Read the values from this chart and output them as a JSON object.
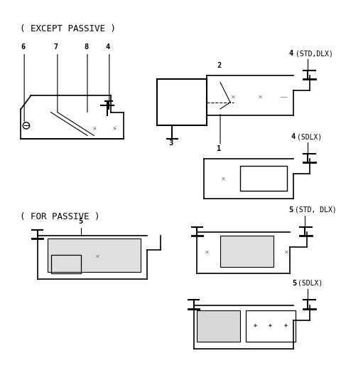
{
  "title": "( EXCEPT PASSIVE )",
  "title2": "( FOR PASSIVE )",
  "bg_color": "#ffffff",
  "line_color": "#000000",
  "labels": {
    "except_passive_top": "( EXCEPT PASSIVE )",
    "for_passive": "( FOR PASSIVE )",
    "std_dlx_top": "4(STD,DLX)",
    "sdlx_mid": "4(SDLX)",
    "std_dlx_pass": "5(STD, DLX)",
    "sdlx_pass": "5(SDLX)",
    "num6": "6",
    "num7": "7",
    "num8": "8",
    "num4_left": "4",
    "num3": "3",
    "num2": "2",
    "num1": "1",
    "num5_left": "5",
    "num5_right_std": "5",
    "num5_right_sdlx": "5"
  }
}
